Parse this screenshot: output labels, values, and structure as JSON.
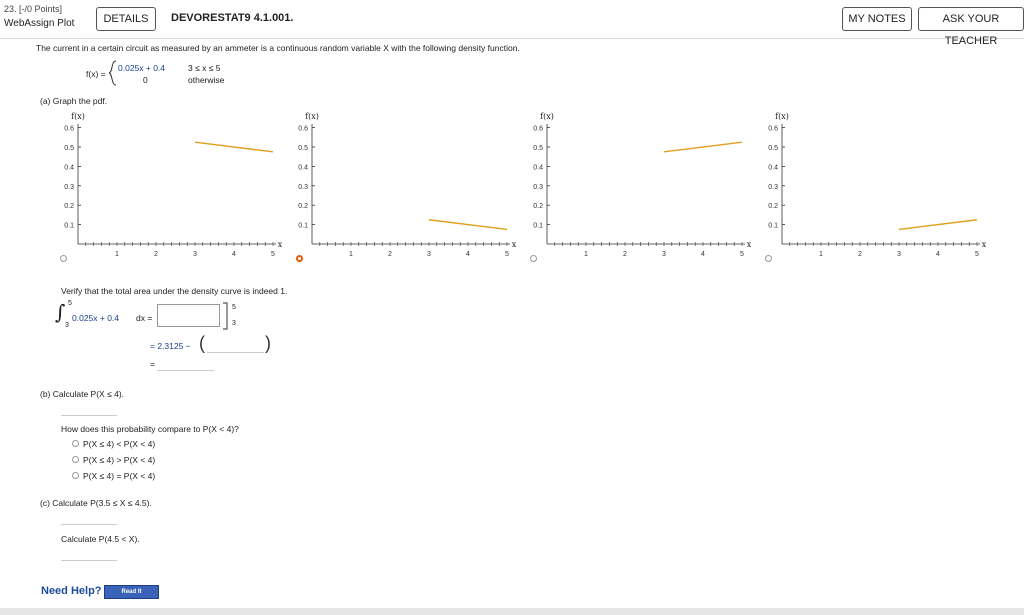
{
  "header": {
    "question_number": "23. [-/0 Points]",
    "widget_title": "WebAssign Plot",
    "details_button": "DETAILS",
    "assignment": "DEVORESTAT9 4.1.001.",
    "my_notes_button": "MY NOTES",
    "ask_teacher_button": "ASK YOUR TEACHER"
  },
  "problem": {
    "intro": "The current in a certain circuit as measured by an ammeter is a continuous random variable X with the following density function.",
    "fx_label": "f(x) =",
    "piece1_expr": "0.025x + 0.4",
    "piece1_cond": "3 ≤ x ≤ 5",
    "piece2_expr": "0",
    "piece2_cond": "otherwise"
  },
  "part_a": {
    "label": "(a)  Graph the pdf.",
    "verify": "Verify that the total area under the density curve is indeed 1.",
    "int_upper": "5",
    "int_lower": "3",
    "integrand": "0.025x + 0.4",
    "dx": "dx =",
    "eval_upper": "5",
    "eval_lower": "3",
    "minus_line_prefix": "= 2.3125 −",
    "equals": "="
  },
  "graphs": {
    "y_axis_label": "f(x)",
    "x_axis_label": "x",
    "y_ticks": [
      "0.1",
      "0.2",
      "0.3",
      "0.4",
      "0.5",
      "0.6"
    ],
    "x_ticks": [
      "1",
      "2",
      "3",
      "4",
      "5"
    ],
    "line_color": "#e0a020",
    "selected_index": 1,
    "options": [
      {
        "segment": [
          [
            3,
            0.525
          ],
          [
            5,
            0.475
          ]
        ]
      },
      {
        "segment": [
          [
            3,
            0.125
          ],
          [
            5,
            0.075
          ]
        ]
      },
      {
        "segment": [
          [
            3,
            0.475
          ],
          [
            5,
            0.525
          ]
        ]
      },
      {
        "segment": [
          [
            3,
            0.075
          ],
          [
            5,
            0.125
          ]
        ]
      }
    ]
  },
  "part_b": {
    "label": "(b)  Calculate P(X ≤ 4).",
    "compare": "How does this probability compare to P(X < 4)?",
    "choices": [
      "P(X ≤ 4) < P(X < 4)",
      "P(X ≤ 4) > P(X < 4)",
      "P(X ≤ 4) = P(X < 4)"
    ]
  },
  "part_c": {
    "label1": "(c)  Calculate P(3.5 ≤ X ≤ 4.5).",
    "label2": "Calculate P(4.5 < X)."
  },
  "help": {
    "need_help": "Need Help?",
    "read_it": "Read It"
  }
}
